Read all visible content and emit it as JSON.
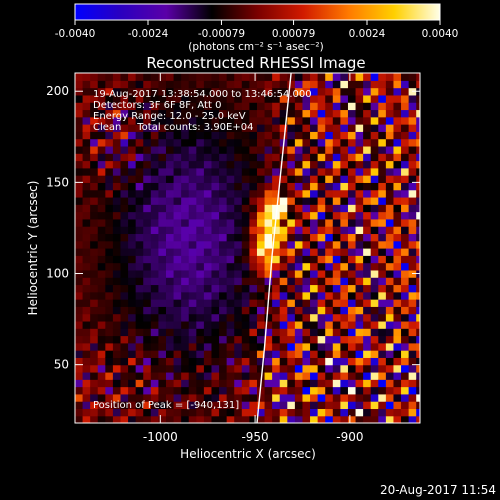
{
  "chart_data": {
    "type": "heatmap",
    "title": "Reconstructed RHESSI Image",
    "xlabel": "Heliocentric X (arcsec)",
    "ylabel": "Heliocentric Y (arcsec)",
    "xlim": [
      -1045,
      -863
    ],
    "ylim": [
      18,
      210
    ],
    "x_ticks": [
      -1000,
      -950,
      -900
    ],
    "x_tick_labels": [
      "-1000",
      "-950",
      "-900"
    ],
    "y_ticks": [
      50,
      100,
      150,
      200
    ],
    "y_tick_labels": [
      "50",
      "100",
      "150",
      "200"
    ],
    "colorbar": {
      "range": [
        -0.004,
        0.004
      ],
      "ticks": [
        -0.004,
        -0.0024,
        -0.00079,
        0.00079,
        0.0024,
        0.004
      ],
      "tick_labels": [
        "-0.0040",
        "-0.0024",
        "-0.00079",
        "0.00079",
        "0.0024",
        "0.0040"
      ],
      "unit_label": "(photons cm⁻² s⁻¹ asec⁻²)",
      "colors": [
        "#0000ff",
        "#2a00c0",
        "#5a00a8",
        "#000000",
        "#7a0000",
        "#d11a00",
        "#ff7a00",
        "#ffd000",
        "#ffffe8"
      ]
    },
    "info_lines": [
      "19-Aug-2017 13:38:54.000 to 13:46:54.000",
      "Detectors: 3F 6F 8F, Att 0",
      "Energy Range: 12.0 - 25.0 keV",
      "Clean     Total counts: 3.90E+04"
    ],
    "peak_text": "Position of Peak = [-940,131]",
    "peak": {
      "x": -940,
      "y": 131
    },
    "limb_x": [
      -949,
      -945,
      -941,
      -936,
      -931
    ],
    "limb_y": [
      18,
      60,
      110,
      160,
      210
    ],
    "sources": [
      {
        "x": -942,
        "y": 125,
        "amplitude": 0.0042,
        "sigma_x": 6,
        "sigma_y": 11
      },
      {
        "x": -938,
        "y": 137,
        "amplitude": 0.0034,
        "sigma_x": 4,
        "sigma_y": 5
      },
      {
        "x": -945,
        "y": 110,
        "amplitude": 0.0024,
        "sigma_x": 5,
        "sigma_y": 7
      }
    ]
  },
  "footer": {
    "timestamp": "20-Aug-2017 11:54"
  }
}
